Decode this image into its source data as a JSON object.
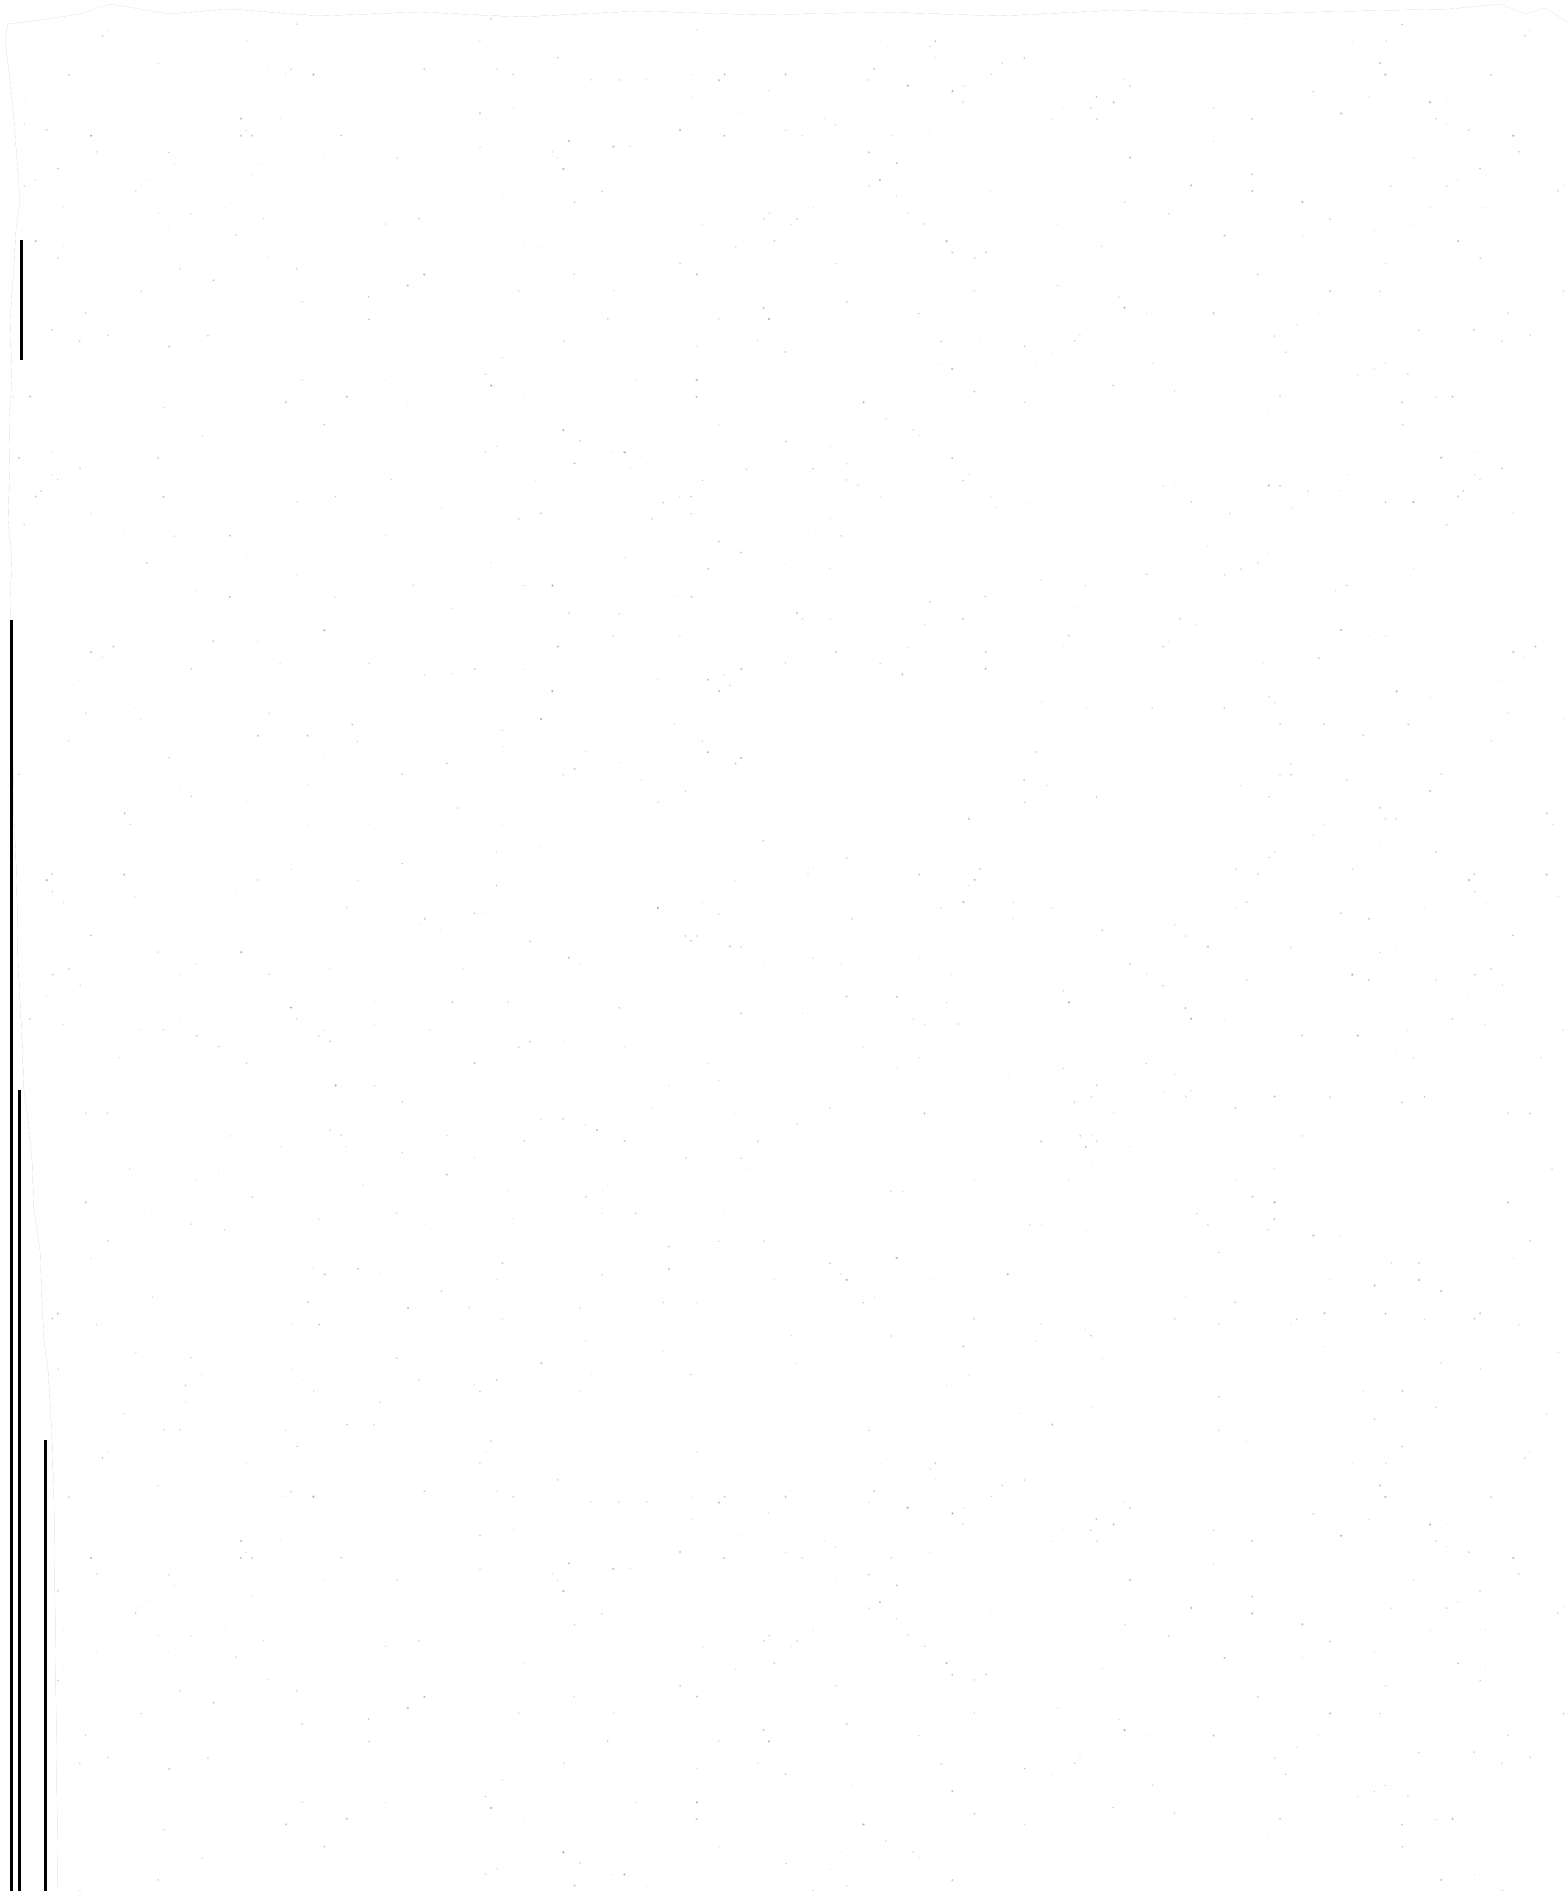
{
  "document": {
    "top_text": "",
    "colors": {
      "background": "#ffffff",
      "texture_base": "#6e6e6e",
      "texture_dark": "#000000",
      "texture_light": "#ffffff"
    }
  }
}
